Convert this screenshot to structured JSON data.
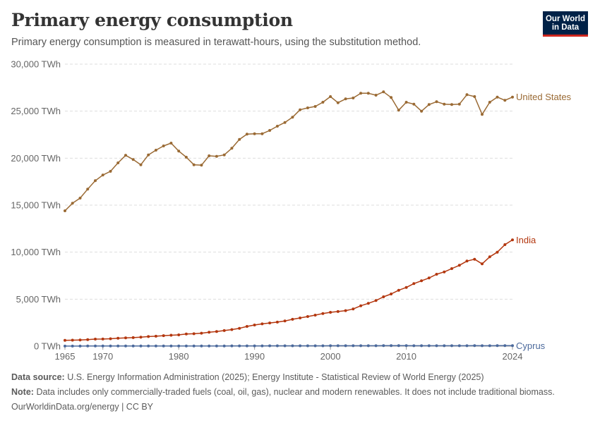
{
  "header": {
    "title": "Primary energy consumption",
    "subtitle": "Primary energy consumption is measured in terawatt-hours, using the substitution method."
  },
  "logo": {
    "line1": "Our World",
    "line2": "in Data"
  },
  "colors": {
    "United States": "#9a6a34",
    "India": "#b3370f",
    "Cyprus": "#4c6a9c",
    "grid": "#dddddd",
    "axis": "#666666"
  },
  "footer": {
    "source_label": "Data source:",
    "source_text": "U.S. Energy Information Administration (2025); Energy Institute - Statistical Review of World Energy (2025)",
    "note_label": "Note:",
    "note_text": "Data includes only commercially-traded fuels (coal, oil, gas), nuclear and modern renewables. It does not include traditional biomass.",
    "credit": "OurWorldinData.org/energy | CC BY"
  },
  "chart_data": {
    "type": "line",
    "title": "Primary energy consumption",
    "ylim": [
      0,
      30000
    ],
    "xlim": [
      1965,
      2024
    ],
    "y_ticks": [
      0,
      5000,
      10000,
      15000,
      20000,
      25000,
      30000
    ],
    "y_tick_labels": [
      "0 TWh",
      "5,000 TWh",
      "10,000 TWh",
      "15,000 TWh",
      "20,000 TWh",
      "25,000 TWh",
      "30,000 TWh"
    ],
    "x_ticks": [
      1965,
      1970,
      1980,
      1990,
      2000,
      2010,
      2024
    ],
    "x_tick_labels": [
      "1965",
      "1970",
      "1980",
      "1990",
      "2000",
      "2010",
      "2024"
    ],
    "grid": "horizontal dashed",
    "legend": "line-end labels on right",
    "x": [
      1965,
      1966,
      1967,
      1968,
      1969,
      1970,
      1971,
      1972,
      1973,
      1974,
      1975,
      1976,
      1977,
      1978,
      1979,
      1980,
      1981,
      1982,
      1983,
      1984,
      1985,
      1986,
      1987,
      1988,
      1989,
      1990,
      1991,
      1992,
      1993,
      1994,
      1995,
      1996,
      1997,
      1998,
      1999,
      2000,
      2001,
      2002,
      2003,
      2004,
      2005,
      2006,
      2007,
      2008,
      2009,
      2010,
      2011,
      2012,
      2013,
      2014,
      2015,
      2016,
      2017,
      2018,
      2019,
      2020,
      2021,
      2022,
      2023,
      2024
    ],
    "series": [
      {
        "name": "United States",
        "values": [
          14400,
          15200,
          15750,
          16700,
          17600,
          18200,
          18600,
          19500,
          20300,
          19850,
          19300,
          20350,
          20850,
          21300,
          21600,
          20750,
          20100,
          19300,
          19250,
          20250,
          20200,
          20350,
          21050,
          22000,
          22550,
          22600,
          22600,
          22950,
          23400,
          23800,
          24350,
          25150,
          25350,
          25500,
          25950,
          26550,
          25900,
          26300,
          26400,
          26900,
          26900,
          26700,
          27050,
          26450,
          25100,
          25950,
          25750,
          25000,
          25700,
          26000,
          25750,
          25700,
          25750,
          26750,
          26550,
          24650,
          25950,
          26500,
          26150,
          26500
        ]
      },
      {
        "name": "India",
        "values": [
          620,
          640,
          660,
          700,
          750,
          760,
          790,
          840,
          880,
          910,
          960,
          1020,
          1060,
          1120,
          1160,
          1200,
          1300,
          1320,
          1380,
          1480,
          1560,
          1660,
          1760,
          1900,
          2100,
          2250,
          2370,
          2470,
          2560,
          2680,
          2860,
          3000,
          3150,
          3300,
          3470,
          3600,
          3680,
          3780,
          3950,
          4300,
          4550,
          4850,
          5250,
          5550,
          5950,
          6250,
          6650,
          6950,
          7250,
          7650,
          7900,
          8250,
          8600,
          9050,
          9250,
          8750,
          9500,
          10000,
          10800,
          11300
        ]
      },
      {
        "name": "Cyprus",
        "values": [
          10,
          10,
          11,
          12,
          13,
          14,
          15,
          16,
          17,
          16,
          15,
          16,
          17,
          18,
          19,
          20,
          21,
          22,
          23,
          24,
          25,
          26,
          27,
          29,
          30,
          32,
          33,
          34,
          35,
          36,
          37,
          38,
          39,
          40,
          41,
          42,
          43,
          44,
          45,
          46,
          47,
          48,
          49,
          50,
          49,
          49,
          48,
          46,
          45,
          45,
          45,
          46,
          47,
          48,
          49,
          46,
          48,
          50,
          50,
          51
        ]
      }
    ]
  }
}
